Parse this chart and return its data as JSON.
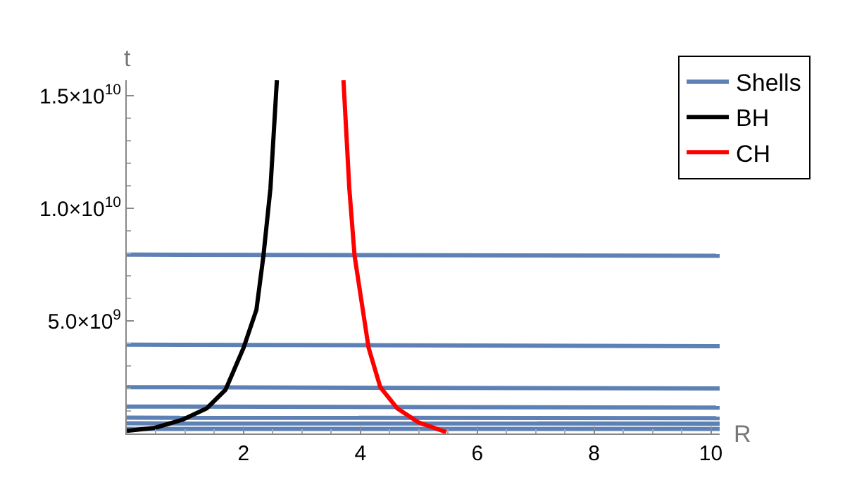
{
  "chart_data": {
    "type": "line",
    "xlabel": "R",
    "ylabel": "t",
    "xlim": [
      0,
      10.15
    ],
    "ylim": [
      0,
      15700000000
    ],
    "xticks": [
      2,
      4,
      6,
      8,
      10
    ],
    "yticks": [
      {
        "value": 5000000000,
        "label": "5.0×10$^{9}$"
      },
      {
        "value": 10000000000,
        "label": "1.0×10$^{10}$"
      },
      {
        "value": 15000000000,
        "label": "1.5×10$^{10}$"
      }
    ],
    "grid": false,
    "legend": "top right",
    "marker": "none",
    "line_style": "solid",
    "series": [
      {
        "name": "Shells",
        "color": "#5e81b5",
        "x": [
          0,
          10.15
        ],
        "values": [
          7950000000,
          7900000000
        ]
      },
      {
        "color": "#5e81b5",
        "x": [
          0,
          10.15
        ],
        "values": [
          3950000000,
          3880000000
        ]
      },
      {
        "color": "#5e81b5",
        "x": [
          0,
          10.15
        ],
        "values": [
          2060000000,
          2000000000
        ]
      },
      {
        "color": "#5e81b5",
        "x": [
          0,
          10.15
        ],
        "values": [
          1200000000,
          1150000000
        ]
      },
      {
        "color": "#5e81b5",
        "x": [
          0,
          10.15
        ],
        "values": [
          700000000,
          680000000
        ]
      },
      {
        "color": "#5e81b5",
        "x": [
          0,
          10.15
        ],
        "values": [
          450000000,
          440000000
        ]
      },
      {
        "color": "#5e81b5",
        "x": [
          0,
          10.15
        ],
        "values": [
          200000000,
          200000000
        ]
      },
      {
        "name": "BH",
        "color": "#000000",
        "x": [
          0,
          0.48,
          0.96,
          1.37,
          1.69,
          2.0,
          2.22,
          2.34,
          2.46,
          2.57
        ],
        "values": [
          120000000,
          250000000,
          620000000,
          1120000000,
          1940000000,
          3810000000,
          5500000000,
          7900000000,
          10900000000,
          15700000000
        ]
      },
      {
        "name": "CH",
        "color": "#ff0000",
        "x": [
          3.71,
          3.81,
          3.9,
          4.14,
          4.34,
          4.63,
          4.99,
          5.47
        ],
        "values": [
          15700000000,
          10900000000,
          7900000000,
          3810000000,
          2060000000,
          1120000000,
          500000000,
          60000000
        ]
      }
    ]
  }
}
